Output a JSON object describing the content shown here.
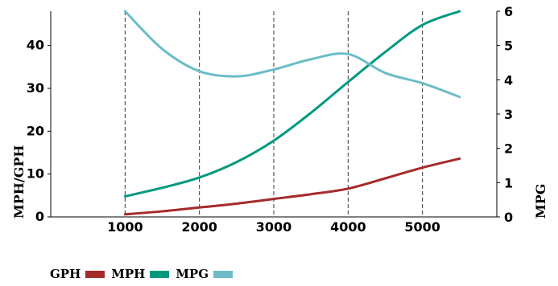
{
  "chart_data": {
    "type": "line",
    "x": [
      1000,
      1500,
      2000,
      2500,
      3000,
      3500,
      4000,
      4500,
      5000,
      5500
    ],
    "xticks": [
      1000,
      2000,
      3000,
      4000,
      5000
    ],
    "xlim": [
      0,
      6000
    ],
    "y_left_label": "MPH/GPH",
    "y_left_ticks": [
      0,
      10,
      20,
      30,
      40
    ],
    "y_left_lim": [
      0,
      48
    ],
    "y_right_label": "MPG",
    "y_right_ticks": [
      0,
      1,
      2,
      3,
      4,
      5,
      6
    ],
    "y_right_lim": [
      0,
      6
    ],
    "grid": "vertical dashed at x ticks",
    "series": [
      {
        "name": "GPH",
        "axis": "left",
        "color": "#a52a2a",
        "values": [
          0.6,
          1.3,
          2.2,
          3.1,
          4.2,
          5.3,
          6.6,
          9.0,
          11.5,
          13.6
        ]
      },
      {
        "name": "MPH",
        "axis": "left",
        "color": "#009980",
        "values": [
          4.8,
          6.8,
          9.2,
          12.8,
          17.8,
          24.3,
          31.5,
          38.5,
          44.8,
          48.0
        ]
      },
      {
        "name": "MPG",
        "axis": "right",
        "color": "#6bbcc8",
        "values": [
          6.0,
          4.9,
          4.25,
          4.1,
          4.3,
          4.6,
          4.75,
          4.2,
          3.9,
          3.5
        ]
      }
    ]
  }
}
